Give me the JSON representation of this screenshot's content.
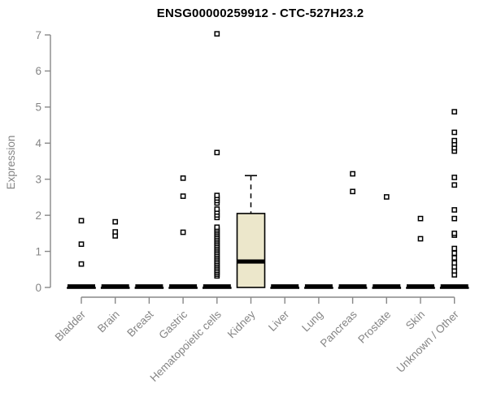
{
  "chart_data": {
    "type": "boxplot",
    "title": "ENSG00000259912 - CTC-527H23.2",
    "ylabel": "Expression",
    "xlabel": "",
    "ylim": [
      0,
      7
    ],
    "yticks": [
      0,
      1,
      2,
      3,
      4,
      5,
      6,
      7
    ],
    "grid": "off",
    "legend": "none",
    "colors": {
      "box_fill": "#ECE7CB",
      "box_border": "#000000",
      "median": "#000000",
      "outlier_stroke": "#000000",
      "outlier_fill": "#ffffff",
      "axis": "#888888",
      "tick_text": "#858585",
      "title_text": "#000000",
      "background": "#ffffff"
    },
    "categories": [
      "Bladder",
      "Brain",
      "Breast",
      "Gastric",
      "Hematopoietic cells",
      "Kidney",
      "Liver",
      "Lung",
      "Pancreas",
      "Prostate",
      "Skin",
      "Unknown / Other"
    ],
    "boxes": [
      {
        "category": "Bladder",
        "q1": 0,
        "median": 0,
        "q3": 0,
        "whisker_low": 0,
        "whisker_high": 0,
        "outliers": [
          0.65,
          1.2,
          1.85
        ]
      },
      {
        "category": "Brain",
        "q1": 0,
        "median": 0,
        "q3": 0,
        "whisker_low": 0,
        "whisker_high": 0,
        "outliers": [
          1.43,
          1.54,
          1.82
        ]
      },
      {
        "category": "Breast",
        "q1": 0,
        "median": 0,
        "q3": 0,
        "whisker_low": 0,
        "whisker_high": 0,
        "outliers": []
      },
      {
        "category": "Gastric",
        "q1": 0,
        "median": 0,
        "q3": 0,
        "whisker_low": 0,
        "whisker_high": 0,
        "outliers": [
          1.53,
          2.53,
          3.03
        ]
      },
      {
        "category": "Hematopoietic cells",
        "q1": 0,
        "median": 0,
        "q3": 0,
        "whisker_low": 0,
        "whisker_high": 0,
        "outliers": [
          0.32,
          0.37,
          0.42,
          0.47,
          0.52,
          0.57,
          0.62,
          0.67,
          0.72,
          0.77,
          0.82,
          0.87,
          0.92,
          0.97,
          1.02,
          1.07,
          1.12,
          1.17,
          1.22,
          1.27,
          1.32,
          1.37,
          1.42,
          1.47,
          1.52,
          1.57,
          1.62,
          1.67,
          1.94,
          2.01,
          2.09,
          2.17,
          2.34,
          2.41,
          2.48,
          2.55,
          3.74,
          7.03
        ]
      },
      {
        "category": "Kidney",
        "q1": 0,
        "median": 0.69,
        "q3": 2.05,
        "whisker_low": 0,
        "whisker_high": 3.1,
        "outliers": []
      },
      {
        "category": "Liver",
        "q1": 0,
        "median": 0,
        "q3": 0,
        "whisker_low": 0,
        "whisker_high": 0,
        "outliers": []
      },
      {
        "category": "Lung",
        "q1": 0,
        "median": 0,
        "q3": 0,
        "whisker_low": 0,
        "whisker_high": 0,
        "outliers": []
      },
      {
        "category": "Pancreas",
        "q1": 0,
        "median": 0,
        "q3": 0,
        "whisker_low": 0,
        "whisker_high": 0,
        "outliers": [
          2.66,
          3.15
        ]
      },
      {
        "category": "Prostate",
        "q1": 0,
        "median": 0,
        "q3": 0,
        "whisker_low": 0,
        "whisker_high": 0,
        "outliers": [
          2.51
        ]
      },
      {
        "category": "Skin",
        "q1": 0,
        "median": 0,
        "q3": 0,
        "whisker_low": 0,
        "whisker_high": 0,
        "outliers": [
          1.35,
          1.91
        ]
      },
      {
        "category": "Unknown / Other",
        "q1": 0,
        "median": 0,
        "q3": 0,
        "whisker_low": 0,
        "whisker_high": 0,
        "outliers": [
          0.35,
          0.46,
          0.57,
          0.68,
          0.82,
          0.95,
          1.08,
          1.45,
          1.5,
          1.91,
          2.15,
          2.84,
          3.05,
          3.78,
          3.87,
          3.97,
          4.07,
          4.3,
          4.87
        ]
      }
    ]
  }
}
